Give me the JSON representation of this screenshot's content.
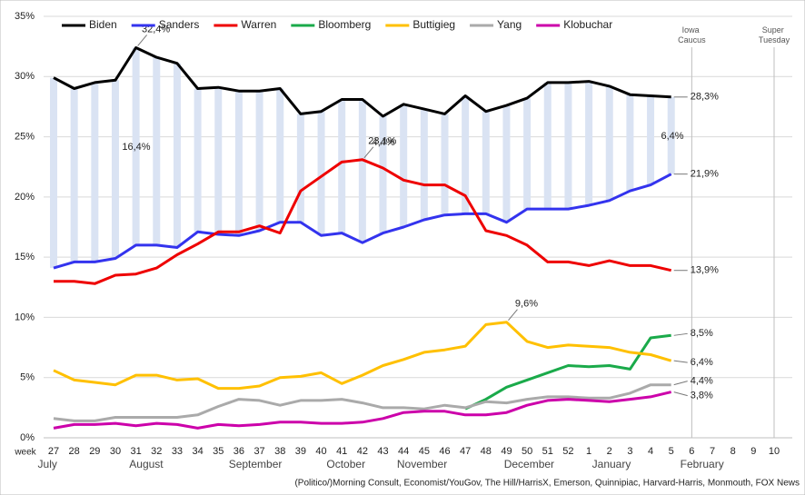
{
  "chart_data": {
    "type": "line",
    "categories": [
      "27",
      "28",
      "29",
      "30",
      "31",
      "32",
      "33",
      "34",
      "35",
      "36",
      "37",
      "38",
      "39",
      "40",
      "41",
      "42",
      "43",
      "44",
      "45",
      "46",
      "47",
      "48",
      "49",
      "50",
      "51",
      "52",
      "1",
      "2",
      "3",
      "4",
      "5",
      "6",
      "7",
      "8",
      "9",
      "10"
    ],
    "x_label": "week",
    "months": [
      "July",
      "August",
      "September",
      "October",
      "November",
      "December",
      "January",
      "February"
    ],
    "ylim": [
      0,
      35
    ],
    "yticks": [
      {
        "value": 0,
        "label": "0%"
      },
      {
        "value": 5,
        "label": "5%"
      },
      {
        "value": 10,
        "label": "10%"
      },
      {
        "value": 15,
        "label": "15%"
      },
      {
        "value": 20,
        "label": "20%"
      },
      {
        "value": 25,
        "label": "25%"
      },
      {
        "value": 30,
        "label": "30%"
      },
      {
        "value": 35,
        "label": "35%"
      }
    ],
    "grid": true,
    "gap_bars": {
      "color": "#dae3f3",
      "from": 0,
      "to": 1
    },
    "gap_labels": [
      "16,4%",
      "4,4%",
      "6,4%"
    ],
    "events": [
      {
        "label": "Iowa Caucus",
        "category": 31
      },
      {
        "label": "Super Tuesday",
        "category": 35
      }
    ],
    "source": "(Politico/)Morning Consult, Economist/YouGov, The Hill/HarrisX, Emerson, Quinnipiac, Harvard-Harris, Monmouth, FOX News",
    "series": [
      {
        "name": "Biden",
        "color": "#000000",
        "values": [
          29.9,
          29.0,
          29.5,
          29.7,
          32.4,
          31.6,
          31.1,
          29.0,
          29.1,
          28.8,
          28.8,
          29.0,
          26.9,
          27.1,
          28.1,
          28.1,
          26.7,
          27.7,
          27.3,
          26.9,
          28.4,
          27.1,
          27.6,
          28.2,
          29.5,
          29.5,
          29.6,
          29.2,
          28.5,
          28.4,
          28.3,
          null,
          null,
          null,
          null,
          null
        ],
        "value_labels": [
          null,
          null,
          null,
          null,
          "32,4%",
          null,
          null,
          null,
          null,
          null,
          null,
          null,
          null,
          null,
          null,
          null,
          null,
          null,
          null,
          null,
          null,
          null,
          null,
          null,
          null,
          null,
          null,
          null,
          null,
          null,
          "28,3%",
          null,
          null,
          null,
          null,
          null
        ]
      },
      {
        "name": "Sanders",
        "color": "#3333ee",
        "values": [
          14.1,
          14.6,
          14.6,
          14.9,
          16.0,
          16.0,
          15.8,
          17.1,
          16.9,
          16.8,
          17.2,
          17.9,
          17.9,
          16.8,
          17.0,
          16.2,
          17.0,
          17.5,
          18.1,
          18.5,
          18.6,
          18.6,
          17.9,
          19.0,
          19.0,
          19.0,
          19.3,
          19.7,
          20.5,
          21.0,
          21.9,
          null,
          null,
          null,
          null,
          null
        ],
        "value_labels": [
          null,
          null,
          null,
          null,
          null,
          null,
          null,
          null,
          null,
          null,
          null,
          null,
          null,
          null,
          null,
          null,
          null,
          null,
          null,
          null,
          null,
          null,
          null,
          null,
          null,
          null,
          null,
          null,
          null,
          null,
          "21,9%",
          null,
          null,
          null,
          null,
          null
        ]
      },
      {
        "name": "Warren",
        "color": "#ee0000",
        "values": [
          13.0,
          13.0,
          12.8,
          13.5,
          13.6,
          14.1,
          15.2,
          16.1,
          17.1,
          17.1,
          17.6,
          17.0,
          20.5,
          21.7,
          22.9,
          23.1,
          22.4,
          21.4,
          21.0,
          21.0,
          20.1,
          17.2,
          16.8,
          16.0,
          14.6,
          14.6,
          14.3,
          14.7,
          14.3,
          14.3,
          13.9,
          null,
          null,
          null,
          null,
          null
        ],
        "value_labels": [
          null,
          null,
          null,
          null,
          null,
          null,
          null,
          null,
          null,
          null,
          null,
          null,
          null,
          null,
          null,
          "23,1%",
          null,
          null,
          null,
          null,
          null,
          null,
          null,
          null,
          null,
          null,
          null,
          null,
          null,
          null,
          "13,9%",
          null,
          null,
          null,
          null,
          null
        ]
      },
      {
        "name": "Bloomberg",
        "color": "#1aaa4a",
        "values": [
          null,
          null,
          null,
          null,
          null,
          null,
          null,
          null,
          null,
          null,
          null,
          null,
          null,
          null,
          null,
          null,
          null,
          null,
          null,
          null,
          2.4,
          3.2,
          4.2,
          4.8,
          5.4,
          6.0,
          5.9,
          6.0,
          5.7,
          8.3,
          8.5,
          null,
          null,
          null,
          null,
          null
        ],
        "value_labels": [
          null,
          null,
          null,
          null,
          null,
          null,
          null,
          null,
          null,
          null,
          null,
          null,
          null,
          null,
          null,
          null,
          null,
          null,
          null,
          null,
          null,
          null,
          null,
          null,
          null,
          null,
          null,
          null,
          null,
          null,
          "8,5%",
          null,
          null,
          null,
          null,
          null
        ]
      },
      {
        "name": "Buttigieg",
        "color": "#ffc000",
        "values": [
          5.6,
          4.8,
          4.6,
          4.4,
          5.2,
          5.2,
          4.8,
          4.9,
          4.1,
          4.1,
          4.3,
          5.0,
          5.1,
          5.4,
          4.5,
          5.2,
          6.0,
          6.5,
          7.1,
          7.3,
          7.6,
          9.4,
          9.6,
          8.0,
          7.5,
          7.7,
          7.6,
          7.5,
          7.1,
          6.9,
          6.4,
          null,
          null,
          null,
          null,
          null
        ],
        "value_labels": [
          null,
          null,
          null,
          null,
          null,
          null,
          null,
          null,
          null,
          null,
          null,
          null,
          null,
          null,
          null,
          null,
          null,
          null,
          null,
          null,
          null,
          null,
          "9,6%",
          null,
          null,
          null,
          null,
          null,
          null,
          null,
          "6,4%",
          null,
          null,
          null,
          null,
          null
        ]
      },
      {
        "name": "Yang",
        "color": "#aaaaaa",
        "values": [
          1.6,
          1.4,
          1.4,
          1.7,
          1.7,
          1.7,
          1.7,
          1.9,
          2.6,
          3.2,
          3.1,
          2.7,
          3.1,
          3.1,
          3.2,
          2.9,
          2.5,
          2.5,
          2.4,
          2.7,
          2.5,
          3.0,
          2.9,
          3.2,
          3.4,
          3.4,
          3.3,
          3.3,
          3.7,
          4.4,
          4.4,
          null,
          null,
          null,
          null,
          null
        ],
        "value_labels": [
          null,
          null,
          null,
          null,
          null,
          null,
          null,
          null,
          null,
          null,
          null,
          null,
          null,
          null,
          null,
          null,
          null,
          null,
          null,
          null,
          null,
          null,
          null,
          null,
          null,
          null,
          null,
          null,
          null,
          null,
          "4,4%",
          null,
          null,
          null,
          null,
          null
        ]
      },
      {
        "name": "Klobuchar",
        "color": "#cc00aa",
        "values": [
          0.8,
          1.1,
          1.1,
          1.2,
          1.0,
          1.2,
          1.1,
          0.8,
          1.1,
          1.0,
          1.1,
          1.3,
          1.3,
          1.2,
          1.2,
          1.3,
          1.6,
          2.1,
          2.2,
          2.2,
          1.9,
          1.9,
          2.1,
          2.7,
          3.1,
          3.2,
          3.1,
          3.0,
          3.2,
          3.4,
          3.8,
          null,
          null,
          null,
          null,
          null
        ],
        "value_labels": [
          null,
          null,
          null,
          null,
          null,
          null,
          null,
          null,
          null,
          null,
          null,
          null,
          null,
          null,
          null,
          null,
          null,
          null,
          null,
          null,
          null,
          null,
          null,
          null,
          null,
          null,
          null,
          null,
          null,
          null,
          "3,8%",
          null,
          null,
          null,
          null,
          null
        ]
      }
    ]
  }
}
